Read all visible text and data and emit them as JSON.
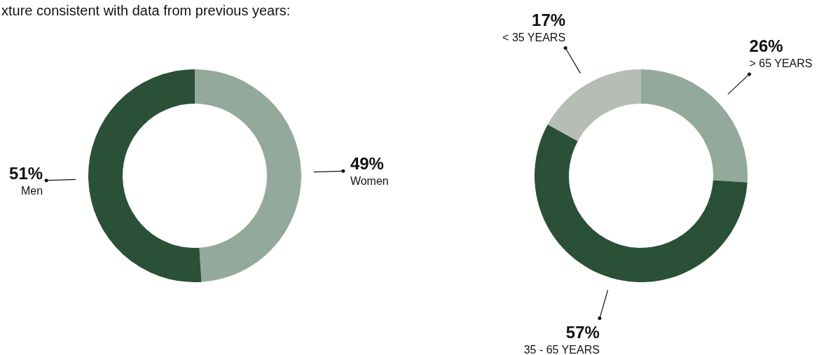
{
  "chart_data": [
    {
      "type": "donut",
      "title": "xture consistent with data from previous years:",
      "categories": [
        "Women",
        "Men"
      ],
      "values": [
        49,
        51
      ],
      "colors": [
        "#93a99b",
        "#2a5037"
      ],
      "value_labels": [
        "49%",
        "51%"
      ]
    },
    {
      "type": "donut",
      "categories": [
        "> 65 YEARS",
        "35 - 65 YEARS",
        "< 35 YEARS"
      ],
      "values": [
        26,
        57,
        17
      ],
      "colors": [
        "#93a99b",
        "#2a5037",
        "#b6bdb5"
      ],
      "value_labels": [
        "26%",
        "57%",
        "17%"
      ]
    }
  ]
}
